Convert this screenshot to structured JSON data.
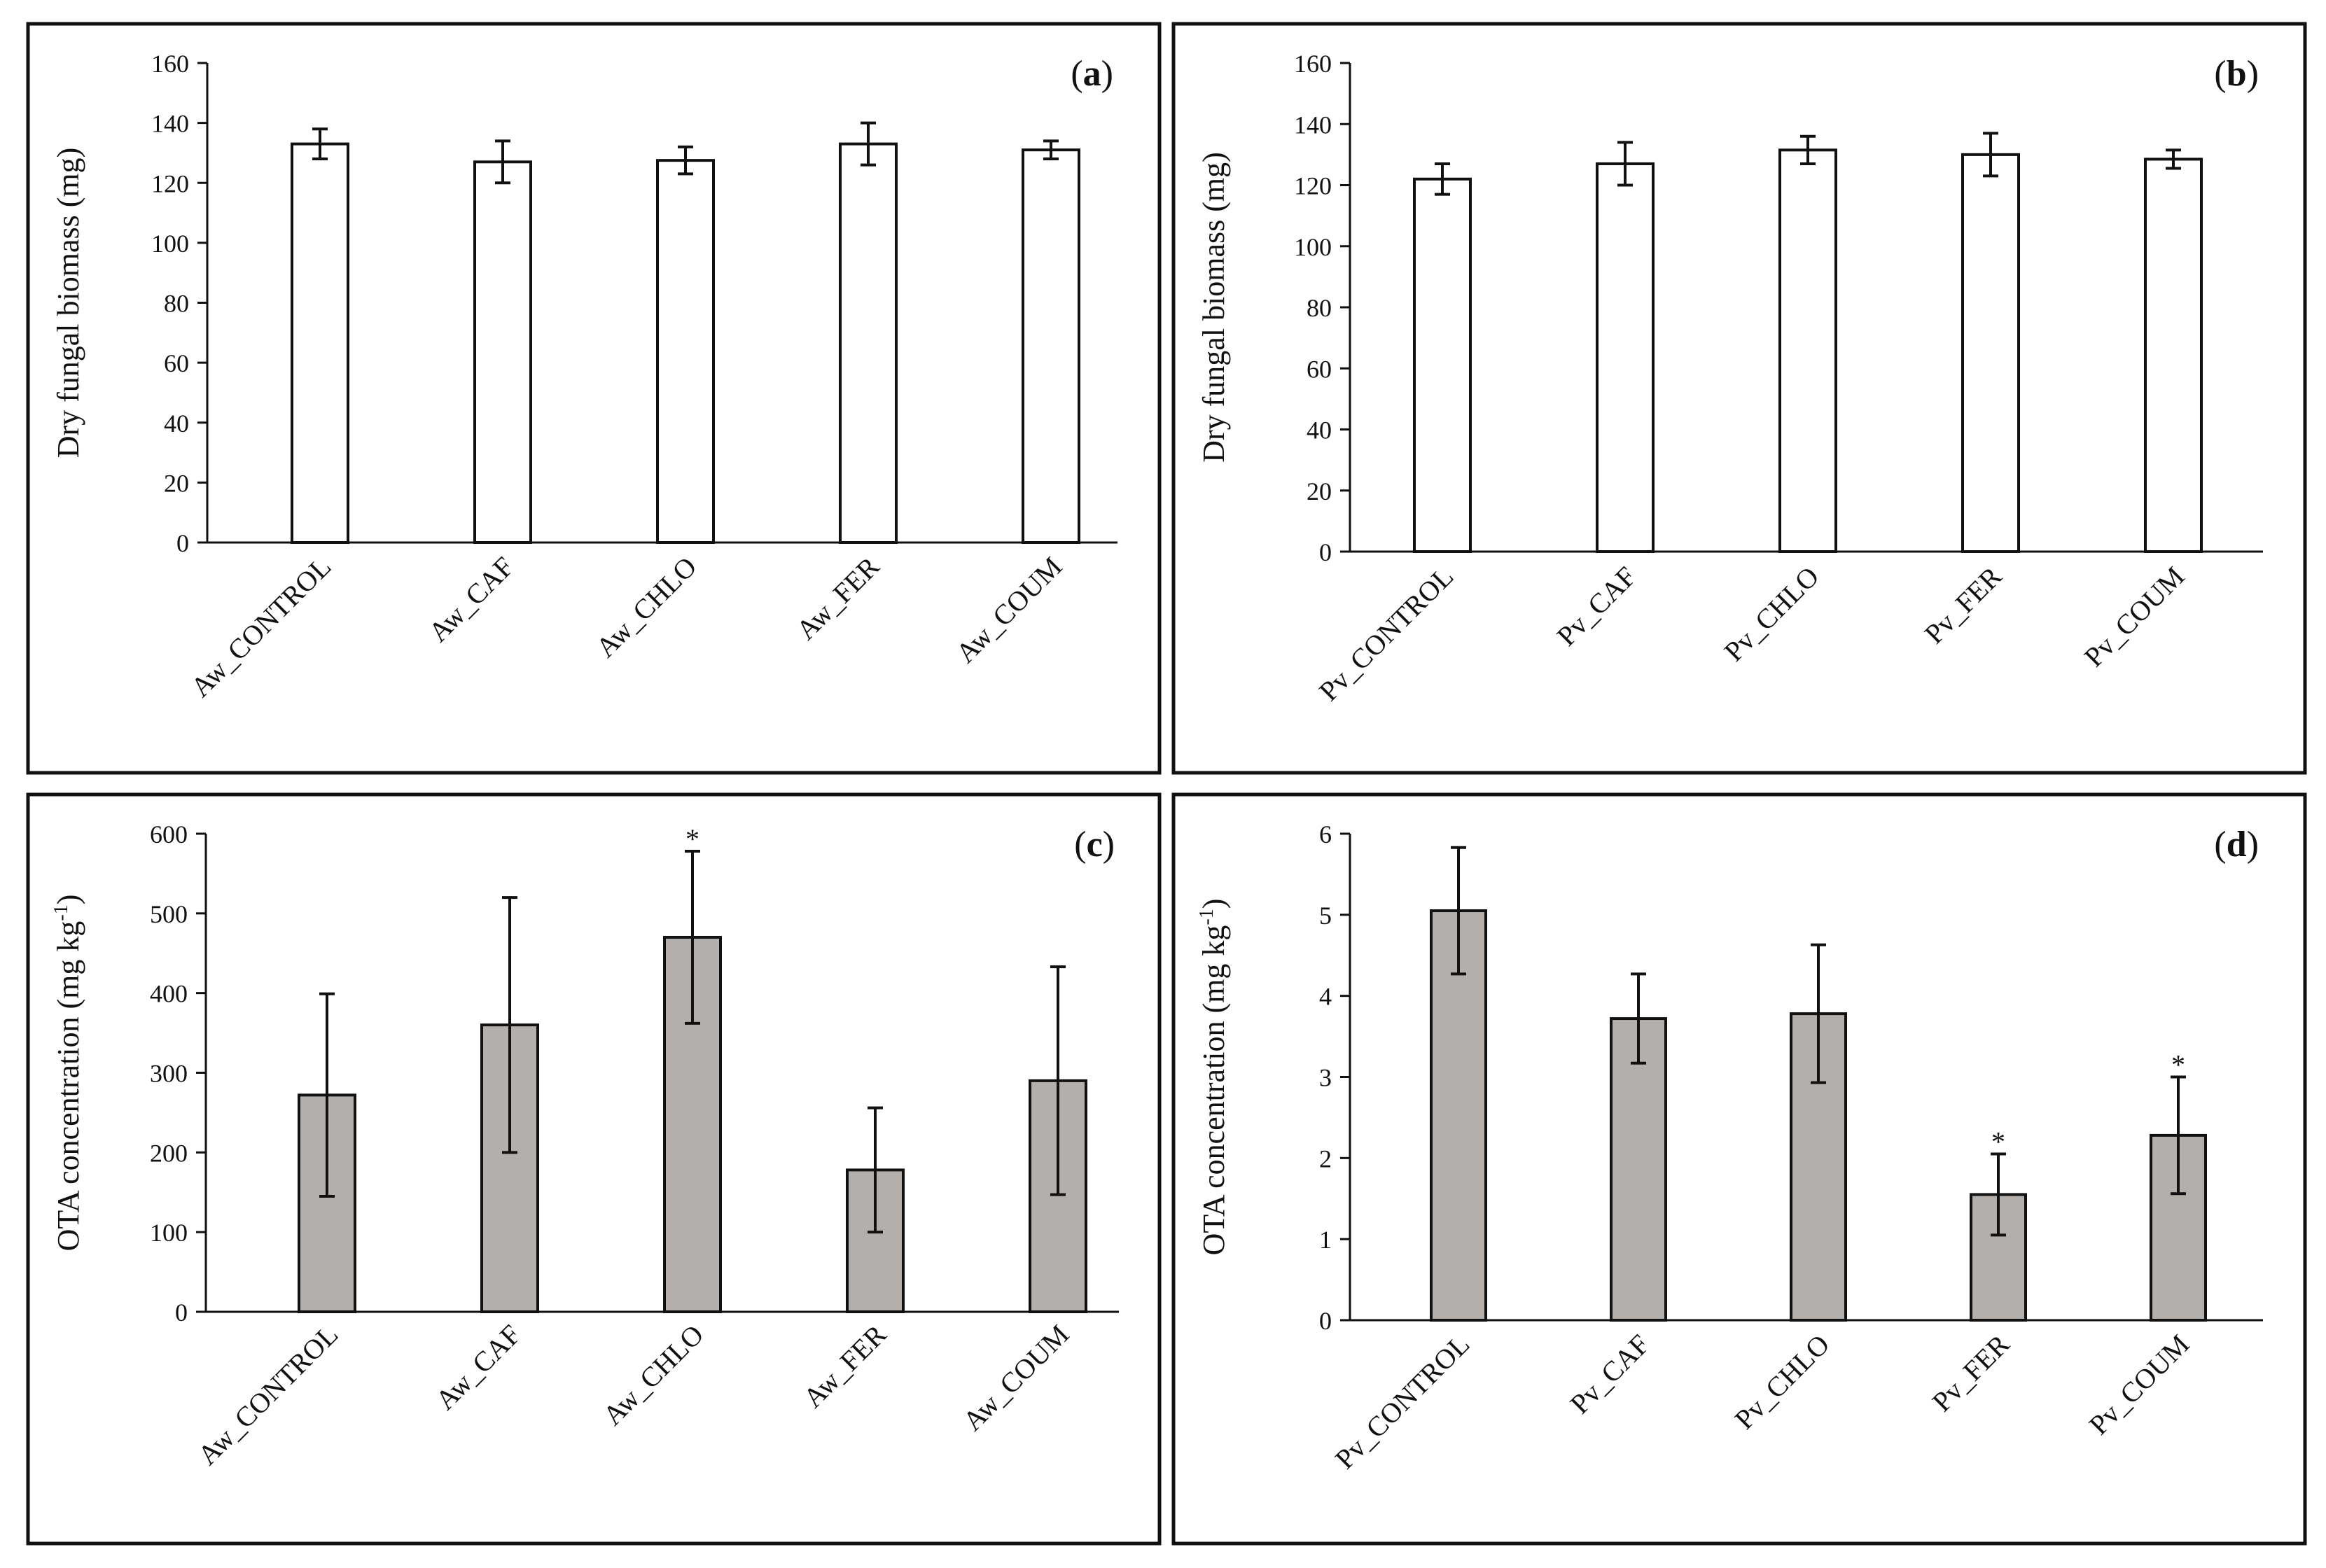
{
  "colors": {
    "biomass_bar": "#ffffff",
    "ota_bar": "#b3afad",
    "axis": "#111111",
    "frame": "#111111"
  },
  "chart_data": [
    {
      "panel": "(a)",
      "type": "bar",
      "categories": [
        "Aw_CONTROL",
        "Aw_CAF",
        "Aw_CHLO",
        "Aw_FER",
        "Aw_COUM"
      ],
      "values": [
        133,
        127,
        127.5,
        133,
        131
      ],
      "errors": [
        5,
        7,
        4.5,
        7,
        3
      ],
      "significant": [
        false,
        false,
        false,
        false,
        false
      ],
      "ylabel": "Dry fungal biomass (mg)",
      "ylim": [
        0,
        160
      ],
      "yticks": [
        0,
        20,
        40,
        60,
        80,
        100,
        120,
        140,
        160
      ],
      "bar_color": "biomass_bar"
    },
    {
      "panel": "(b)",
      "type": "bar",
      "categories": [
        "Pv_CONTROL",
        "Pv_CAF",
        "Pv_CHLO",
        "Pv_FER",
        "Pv_COUM"
      ],
      "values": [
        122,
        127,
        131.5,
        130,
        128.5
      ],
      "errors": [
        5,
        7,
        4.5,
        7,
        3
      ],
      "significant": [
        false,
        false,
        false,
        false,
        false
      ],
      "ylabel": "Dry fungal biomass (mg)",
      "ylim": [
        0,
        160
      ],
      "yticks": [
        0,
        20,
        40,
        60,
        80,
        100,
        120,
        140,
        160
      ],
      "bar_color": "biomass_bar"
    },
    {
      "panel": "(c)",
      "type": "bar",
      "categories": [
        "Aw_CONTROL",
        "Aw_CAF",
        "Aw_CHLO",
        "Aw_FER",
        "Aw_COUM"
      ],
      "values": [
        272,
        360,
        470,
        178,
        290
      ],
      "errors": [
        127,
        160,
        108,
        78,
        143
      ],
      "significant": [
        false,
        false,
        true,
        false,
        false
      ],
      "ylabel": "OTA concentration (mg kg",
      "ylabel_sup": "-1",
      "ylabel_end": ")",
      "ylim": [
        0,
        600
      ],
      "yticks": [
        0,
        100,
        200,
        300,
        400,
        500,
        600
      ],
      "bar_color": "ota_bar"
    },
    {
      "panel": "(d)",
      "type": "bar",
      "categories": [
        "Pv_CONTROL",
        "Pv_CAF",
        "Pv_CHLO",
        "Pv_FER",
        "Pv_COUM"
      ],
      "values": [
        5.05,
        3.72,
        3.78,
        1.55,
        2.28
      ],
      "errors": [
        0.78,
        0.55,
        0.85,
        0.5,
        0.72
      ],
      "significant": [
        false,
        false,
        false,
        true,
        true
      ],
      "ylabel": "OTA concentration (mg kg",
      "ylabel_sup": "-1",
      "ylabel_end": ")",
      "ylim": [
        0,
        6
      ],
      "yticks": [
        0,
        1,
        2,
        3,
        4,
        5,
        6
      ],
      "bar_color": "ota_bar"
    }
  ],
  "significance_mark": "*"
}
